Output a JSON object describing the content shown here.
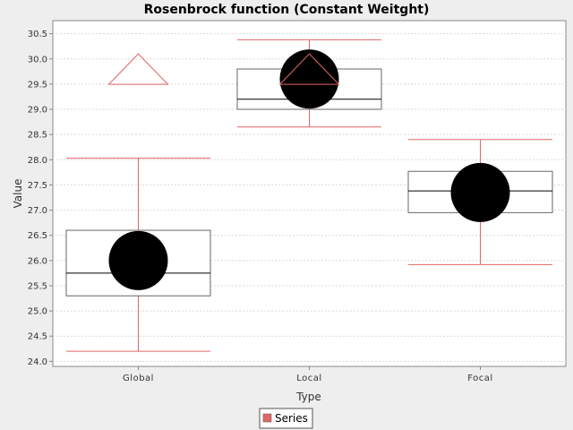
{
  "chart_data": {
    "type": "box",
    "title": "Rosenbrock function (Constant Weitght)",
    "xlabel": "Type",
    "ylabel": "Value",
    "ylim": [
      23.9,
      30.76
    ],
    "yticks": [
      24.0,
      24.5,
      25.0,
      25.5,
      26.0,
      26.5,
      27.0,
      27.5,
      28.0,
      28.5,
      29.0,
      29.5,
      30.0,
      30.5
    ],
    "grid": true,
    "legend_position": "bottom-center",
    "categories": [
      "Global",
      "Local",
      "Focal"
    ],
    "series": [
      {
        "name": "Series",
        "color": "#e06666",
        "boxes": [
          {
            "category": "Global",
            "min": 24.2,
            "q1": 25.3,
            "median": 25.75,
            "q3": 26.6,
            "max": 28.03,
            "mean": 26.0,
            "outliers": []
          },
          {
            "category": "Local",
            "min": 28.65,
            "q1": 29.0,
            "median": 29.2,
            "q3": 29.8,
            "max": 30.38,
            "mean": 29.6,
            "outliers": []
          },
          {
            "category": "Focal",
            "min": 25.92,
            "q1": 26.95,
            "median": 27.38,
            "q3": 27.77,
            "max": 28.4,
            "mean": 27.35,
            "outliers": []
          }
        ],
        "far_outliers": [
          {
            "category": "Global",
            "value": 30.1
          },
          {
            "category": "Local",
            "value": 30.1
          }
        ]
      }
    ]
  }
}
